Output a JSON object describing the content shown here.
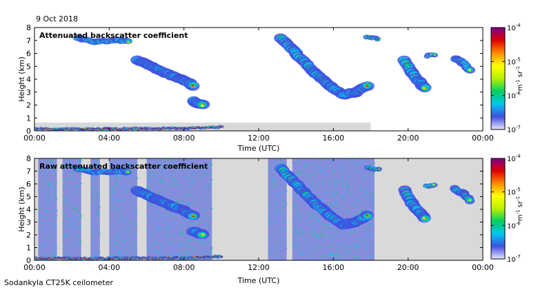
{
  "date_label": "9 Oct 2018",
  "footer_label": "Sodankyla CT25K ceilometer",
  "colors": {
    "colormap": [
      "#e6e6fa",
      "#4050e0",
      "#00c8f0",
      "#00d060",
      "#b8f000",
      "#ffff00",
      "#ff8c00",
      "#e00000",
      "#7a0090"
    ],
    "noise": "#d9d9d9",
    "frame": "#000000"
  },
  "colorbar": {
    "tick_labels": [
      "10",
      "10",
      "10",
      "10"
    ],
    "tick_exponents": [
      "-4",
      "-5",
      "-6",
      "-7"
    ],
    "unit_label": "m",
    "unit_exp1": "-1",
    "unit_mid": " sr",
    "unit_exp2": "-1",
    "scale": "log",
    "range": [
      1e-07,
      0.0001
    ]
  },
  "chart_data": [
    {
      "type": "heatmap",
      "title": "Attenuated backscatter coefficient",
      "xlabel": "Time (UTC)",
      "ylabel": "Height (km)",
      "xticks": [
        "00:00",
        "04:00",
        "08:00",
        "12:00",
        "16:00",
        "20:00",
        "00:00"
      ],
      "yticks": [
        "0",
        "1",
        "2",
        "3",
        "4",
        "5",
        "6",
        "7",
        "8"
      ],
      "xlim_hours": [
        0,
        24
      ],
      "ylim_km": [
        0,
        8
      ],
      "grid": false,
      "layers": [
        {
          "name": "surface",
          "points": [
            [
              0,
              0.15
            ],
            [
              4,
              0.15
            ],
            [
              8,
              0.2
            ],
            [
              10,
              0.3
            ]
          ],
          "thickness": 0.25,
          "level": 7
        },
        {
          "name": "upper-early",
          "points": [
            [
              2.3,
              7.2
            ],
            [
              3.2,
              6.9
            ],
            [
              4.5,
              7.0
            ],
            [
              5.0,
              6.9
            ]
          ],
          "thickness": 0.5,
          "level": 5
        },
        {
          "name": "descending-morning",
          "points": [
            [
              5.5,
              5.5
            ],
            [
              6.5,
              4.8
            ],
            [
              7.3,
              4.3
            ],
            [
              8.0,
              3.9
            ],
            [
              8.5,
              3.5
            ]
          ],
          "thickness": 0.8,
          "level": 6
        },
        {
          "name": "morning-low",
          "points": [
            [
              8.5,
              2.3
            ],
            [
              9.0,
              2.0
            ]
          ],
          "thickness": 0.8,
          "level": 5
        },
        {
          "name": "descending-afternoon",
          "points": [
            [
              13.2,
              7.2
            ],
            [
              14.0,
              6.0
            ],
            [
              15.0,
              4.5
            ],
            [
              15.8,
              3.5
            ],
            [
              16.5,
              2.8
            ],
            [
              17.2,
              3.0
            ],
            [
              17.8,
              3.5
            ]
          ],
          "thickness": 0.8,
          "level": 6
        },
        {
          "name": "high-18",
          "points": [
            [
              17.8,
              7.3
            ],
            [
              18.4,
              7.1
            ]
          ],
          "thickness": 0.4,
          "level": 7
        },
        {
          "name": "evening",
          "points": [
            [
              19.8,
              5.5
            ],
            [
              20.2,
              4.5
            ],
            [
              20.6,
              3.8
            ],
            [
              20.9,
              3.3
            ]
          ],
          "thickness": 0.8,
          "level": 5
        },
        {
          "name": "evening-upper",
          "points": [
            [
              21.0,
              5.8
            ],
            [
              21.4,
              5.9
            ]
          ],
          "thickness": 0.4,
          "level": 5
        },
        {
          "name": "late",
          "points": [
            [
              22.5,
              5.6
            ],
            [
              23.0,
              5.2
            ],
            [
              23.3,
              4.7
            ]
          ],
          "thickness": 0.6,
          "level": 4
        }
      ]
    },
    {
      "type": "heatmap",
      "title": "Raw attenuated backscatter coefficient",
      "xlabel": "Time (UTC)",
      "ylabel": "Height (km)",
      "xticks": [
        "00:00",
        "04:00",
        "08:00",
        "12:00",
        "16:00",
        "20:00",
        "00:00"
      ],
      "yticks": [
        "0",
        "1",
        "2",
        "3",
        "4",
        "5",
        "6",
        "7",
        "8"
      ],
      "xlim_hours": [
        0,
        24
      ],
      "ylim_km": [
        0,
        8
      ],
      "grid": false,
      "layers": [
        {
          "name": "surface",
          "points": [
            [
              0,
              0.15
            ],
            [
              4,
              0.15
            ],
            [
              8,
              0.2
            ],
            [
              10,
              0.3
            ]
          ],
          "thickness": 0.25,
          "level": 7
        },
        {
          "name": "upper-early",
          "points": [
            [
              2.3,
              7.2
            ],
            [
              3.2,
              6.9
            ],
            [
              4.5,
              7.0
            ],
            [
              5.0,
              6.9
            ]
          ],
          "thickness": 0.5,
          "level": 5
        },
        {
          "name": "descending-morning",
          "points": [
            [
              5.5,
              5.5
            ],
            [
              6.5,
              4.8
            ],
            [
              7.3,
              4.3
            ],
            [
              8.0,
              3.9
            ],
            [
              8.5,
              3.5
            ]
          ],
          "thickness": 0.8,
          "level": 6
        },
        {
          "name": "morning-low",
          "points": [
            [
              8.5,
              2.3
            ],
            [
              9.0,
              2.0
            ]
          ],
          "thickness": 0.8,
          "level": 5
        },
        {
          "name": "descending-afternoon",
          "points": [
            [
              13.2,
              7.2
            ],
            [
              14.0,
              6.0
            ],
            [
              15.0,
              4.5
            ],
            [
              15.8,
              3.5
            ],
            [
              16.5,
              2.8
            ],
            [
              17.2,
              3.0
            ],
            [
              17.8,
              3.5
            ]
          ],
          "thickness": 0.8,
          "level": 6
        },
        {
          "name": "high-18",
          "points": [
            [
              17.8,
              7.3
            ],
            [
              18.4,
              7.1
            ]
          ],
          "thickness": 0.4,
          "level": 7
        },
        {
          "name": "evening",
          "points": [
            [
              19.8,
              5.5
            ],
            [
              20.2,
              4.5
            ],
            [
              20.6,
              3.8
            ],
            [
              20.9,
              3.3
            ]
          ],
          "thickness": 0.8,
          "level": 5
        },
        {
          "name": "evening-upper",
          "points": [
            [
              21.0,
              5.8
            ],
            [
              21.4,
              5.9
            ]
          ],
          "thickness": 0.4,
          "level": 5
        },
        {
          "name": "late",
          "points": [
            [
              22.5,
              5.6
            ],
            [
              23.0,
              5.2
            ],
            [
              23.3,
              4.7
            ]
          ],
          "thickness": 0.6,
          "level": 4
        }
      ],
      "noise_bands_hours": [
        [
          0.2,
          1.2
        ],
        [
          1.5,
          2.5
        ],
        [
          3.0,
          3.5
        ],
        [
          4.0,
          5.5
        ],
        [
          6.0,
          9.5
        ],
        [
          12.5,
          13.5
        ],
        [
          13.8,
          18.2
        ]
      ]
    }
  ]
}
